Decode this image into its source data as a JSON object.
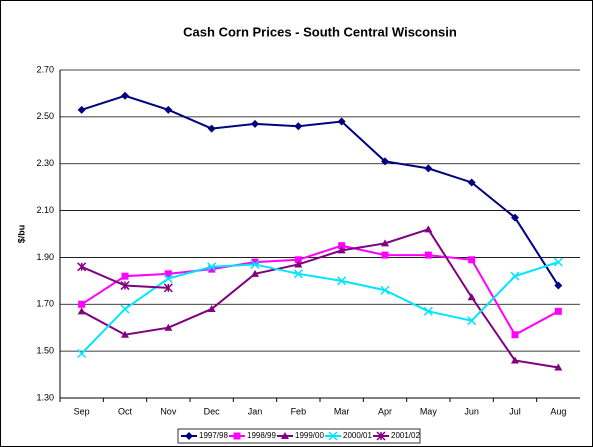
{
  "chart_data": {
    "type": "line",
    "title": "Cash Corn Prices - South Central Wisconsin",
    "y_label": "$/bu",
    "categories": [
      "Sep",
      "Oct",
      "Nov",
      "Dec",
      "Jan",
      "Feb",
      "Mar",
      "Apr",
      "May",
      "Jun",
      "Jul",
      "Aug"
    ],
    "series": [
      {
        "name": "1997/98",
        "color": "#000080",
        "marker": "diamond",
        "values": [
          2.53,
          2.59,
          2.53,
          2.45,
          2.47,
          2.46,
          2.48,
          2.31,
          2.28,
          2.22,
          2.07,
          1.78
        ]
      },
      {
        "name": "1998/99",
        "color": "#ff00ff",
        "marker": "square",
        "values": [
          1.7,
          1.82,
          1.83,
          1.85,
          1.88,
          1.89,
          1.95,
          1.91,
          1.91,
          1.89,
          1.57,
          1.67
        ]
      },
      {
        "name": "1999/00",
        "color": "#800080",
        "marker": "triangle",
        "values": [
          1.67,
          1.57,
          1.6,
          1.68,
          1.83,
          1.87,
          1.93,
          1.96,
          2.02,
          1.73,
          1.46,
          1.43
        ]
      },
      {
        "name": "2000/01",
        "color": "#00e5ff",
        "marker": "x",
        "values": [
          1.49,
          1.68,
          1.81,
          1.86,
          1.87,
          1.83,
          1.8,
          1.76,
          1.67,
          1.63,
          1.82,
          1.88
        ]
      },
      {
        "name": "2001/02",
        "color": "#800080",
        "marker": "asterisk",
        "values": [
          1.86,
          1.78,
          1.77,
          null,
          null,
          null,
          null,
          null,
          null,
          null,
          null,
          null
        ]
      }
    ],
    "ylim": [
      1.3,
      2.7
    ],
    "yticks": [
      {
        "value": 1.3,
        "label": "1.30"
      },
      {
        "value": 1.5,
        "label": "1.50"
      },
      {
        "value": 1.7,
        "label": "1.70"
      },
      {
        "value": 1.9,
        "label": "1.90"
      },
      {
        "value": 2.1,
        "label": "2.10"
      },
      {
        "value": 2.3,
        "label": "2.30"
      },
      {
        "value": 2.5,
        "label": "2.50"
      },
      {
        "value": 2.7,
        "label": "2.70"
      }
    ],
    "grid": true,
    "legend": "bottom"
  }
}
